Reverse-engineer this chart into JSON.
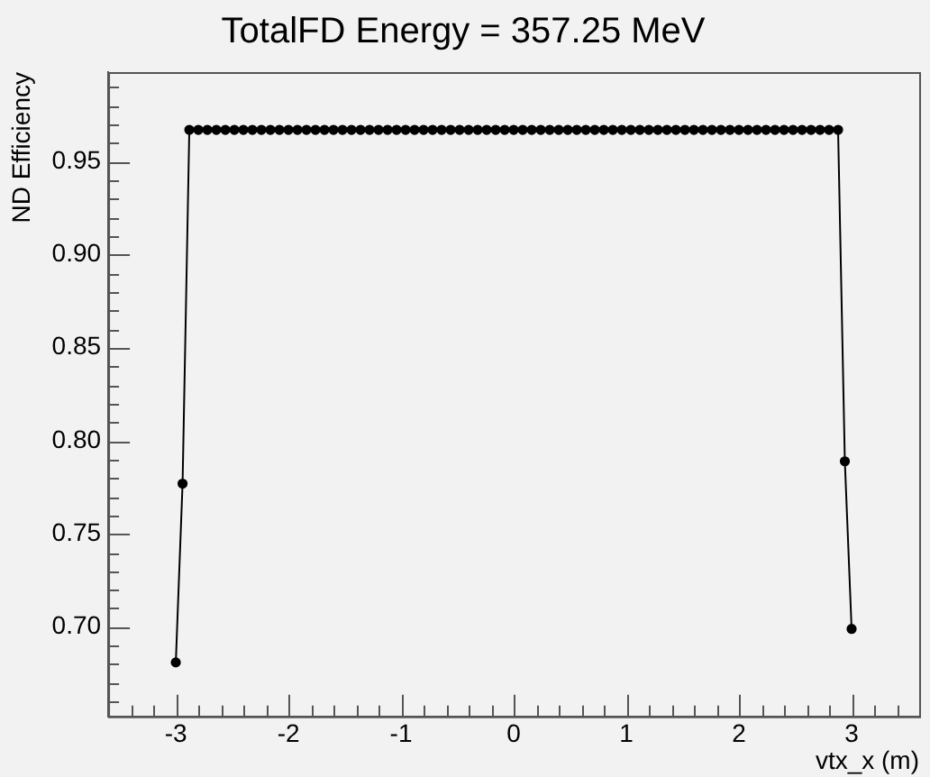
{
  "chart_data": {
    "type": "line",
    "title": "TotalFD Energy = 357.25 MeV",
    "xlabel": "vtx_x (m)",
    "ylabel": "ND Efficiency",
    "x": [
      -3,
      -2.94,
      -2.88,
      -2.8,
      -2.72,
      -2.64,
      -2.56,
      -2.48,
      -2.4,
      -2.32,
      -2.24,
      -2.16,
      -2.08,
      -2,
      -1.92,
      -1.84,
      -1.76,
      -1.68,
      -1.6,
      -1.52,
      -1.44,
      -1.36,
      -1.28,
      -1.2,
      -1.12,
      -1.04,
      -0.96,
      -0.88,
      -0.8,
      -0.72,
      -0.64,
      -0.56,
      -0.48,
      -0.4,
      -0.32,
      -0.24,
      -0.16,
      -0.08,
      0,
      0.08,
      0.16,
      0.24,
      0.32,
      0.4,
      0.48,
      0.56,
      0.64,
      0.72,
      0.8,
      0.88,
      0.96,
      1.04,
      1.12,
      1.2,
      1.28,
      1.36,
      1.44,
      1.52,
      1.6,
      1.68,
      1.76,
      1.84,
      1.92,
      2,
      2.08,
      2.16,
      2.24,
      2.32,
      2.4,
      2.48,
      2.56,
      2.64,
      2.72,
      2.8,
      2.88,
      2.94,
      3
    ],
    "series": [
      {
        "color": "#000000",
        "values": [
          0.681,
          0.777,
          0.967,
          0.967,
          0.967,
          0.967,
          0.967,
          0.967,
          0.967,
          0.967,
          0.967,
          0.967,
          0.967,
          0.967,
          0.967,
          0.967,
          0.967,
          0.967,
          0.967,
          0.967,
          0.967,
          0.967,
          0.967,
          0.967,
          0.967,
          0.967,
          0.967,
          0.967,
          0.967,
          0.967,
          0.967,
          0.967,
          0.967,
          0.967,
          0.967,
          0.967,
          0.967,
          0.967,
          0.967,
          0.967,
          0.967,
          0.967,
          0.967,
          0.967,
          0.967,
          0.967,
          0.967,
          0.967,
          0.967,
          0.967,
          0.967,
          0.967,
          0.967,
          0.967,
          0.967,
          0.967,
          0.967,
          0.967,
          0.967,
          0.967,
          0.967,
          0.967,
          0.967,
          0.967,
          0.967,
          0.967,
          0.967,
          0.967,
          0.967,
          0.967,
          0.967,
          0.967,
          0.967,
          0.967,
          0.967,
          0.789,
          0.699
        ]
      }
    ],
    "xlim": [
      -3.6,
      3.6
    ],
    "ylim": [
      0.652,
      0.998
    ],
    "xticks": [
      {
        "value": -3.4,
        "label": null
      },
      {
        "value": -3.2,
        "label": null
      },
      -3,
      {
        "value": -2.8,
        "label": null
      },
      {
        "value": -2.6,
        "label": null
      },
      {
        "value": -2.4,
        "label": null
      },
      {
        "value": -2.2,
        "label": null
      },
      -2,
      {
        "value": -1.8,
        "label": null
      },
      {
        "value": -1.6,
        "label": null
      },
      {
        "value": -1.4,
        "label": null
      },
      {
        "value": -1.2,
        "label": null
      },
      -1,
      {
        "value": -0.8,
        "label": null
      },
      {
        "value": -0.6,
        "label": null
      },
      {
        "value": -0.4,
        "label": null
      },
      {
        "value": -0.2,
        "label": null
      },
      0,
      {
        "value": 0.2,
        "label": null
      },
      {
        "value": 0.4,
        "label": null
      },
      {
        "value": 0.6,
        "label": null
      },
      {
        "value": 0.8,
        "label": null
      },
      1,
      {
        "value": 1.2,
        "label": null
      },
      {
        "value": 1.4,
        "label": null
      },
      {
        "value": 1.6,
        "label": null
      },
      {
        "value": 1.8,
        "label": null
      },
      2,
      {
        "value": 2.2,
        "label": null
      },
      {
        "value": 2.4,
        "label": null
      },
      {
        "value": 2.6,
        "label": null
      },
      {
        "value": 2.8,
        "label": null
      },
      3,
      {
        "value": 3.2,
        "label": null
      },
      {
        "value": 3.4,
        "label": null
      }
    ],
    "yticks": [
      {
        "value": 0.66,
        "label": null
      },
      {
        "value": 0.67,
        "label": null
      },
      {
        "value": 0.68,
        "label": null
      },
      {
        "value": 0.69,
        "label": null
      },
      {
        "value": 0.7,
        "label": "0.70"
      },
      {
        "value": 0.71,
        "label": null
      },
      {
        "value": 0.72,
        "label": null
      },
      {
        "value": 0.73,
        "label": null
      },
      {
        "value": 0.74,
        "label": null
      },
      0.75,
      {
        "value": 0.76,
        "label": null
      },
      {
        "value": 0.77,
        "label": null
      },
      {
        "value": 0.78,
        "label": null
      },
      {
        "value": 0.79,
        "label": null
      },
      {
        "value": 0.8,
        "label": "0.80"
      },
      {
        "value": 0.81,
        "label": null
      },
      {
        "value": 0.82,
        "label": null
      },
      {
        "value": 0.83,
        "label": null
      },
      {
        "value": 0.84,
        "label": null
      },
      0.85,
      {
        "value": 0.86,
        "label": null
      },
      {
        "value": 0.87,
        "label": null
      },
      {
        "value": 0.88,
        "label": null
      },
      {
        "value": 0.89,
        "label": null
      },
      {
        "value": 0.9,
        "label": "0.90"
      },
      {
        "value": 0.91,
        "label": null
      },
      {
        "value": 0.92,
        "label": null
      },
      {
        "value": 0.93,
        "label": null
      },
      {
        "value": 0.94,
        "label": null
      },
      0.95,
      {
        "value": 0.96,
        "label": null
      },
      {
        "value": 0.97,
        "label": null
      },
      {
        "value": 0.98,
        "label": null
      },
      {
        "value": 0.99,
        "label": null
      }
    ],
    "grid": false,
    "legend": false,
    "marker": "circle",
    "line_style": "solid"
  }
}
